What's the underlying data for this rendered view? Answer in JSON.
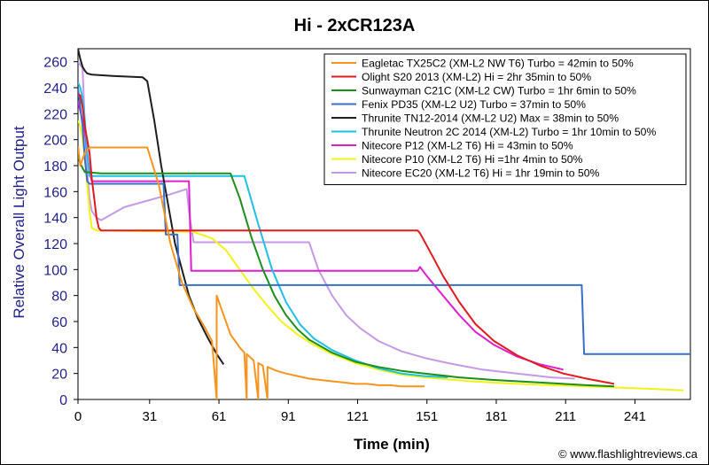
{
  "chart_data": {
    "type": "line",
    "title": "Hi - 2xCR123A",
    "xlabel": "Time (min)",
    "ylabel": "Relative Overall Light Output",
    "xlim": [
      0,
      265
    ],
    "ylim": [
      0,
      270
    ],
    "xticks": [
      0,
      31,
      61,
      91,
      121,
      151,
      181,
      211,
      241
    ],
    "yticks": [
      0,
      20,
      40,
      60,
      80,
      100,
      120,
      140,
      160,
      180,
      200,
      220,
      240,
      260
    ],
    "grid": false,
    "legend_position": "top-right",
    "copyright": "© www.flashlightreviews.ca",
    "series": [
      {
        "name": "Eagletac TX25C2 (XM-L2 NW T6) Turbo = 42min to 50%",
        "color": "#f7941d",
        "points": [
          [
            0,
            195
          ],
          [
            1,
            180
          ],
          [
            3,
            190
          ],
          [
            5,
            194
          ],
          [
            30,
            194
          ],
          [
            35,
            165
          ],
          [
            40,
            120
          ],
          [
            45,
            90
          ],
          [
            50,
            70
          ],
          [
            55,
            55
          ],
          [
            58,
            45
          ],
          [
            60,
            0
          ],
          [
            60,
            80
          ],
          [
            62,
            70
          ],
          [
            64,
            60
          ],
          [
            66,
            50
          ],
          [
            68,
            45
          ],
          [
            70,
            40
          ],
          [
            72,
            36
          ],
          [
            73,
            0
          ],
          [
            73,
            35
          ],
          [
            76,
            30
          ],
          [
            78,
            0
          ],
          [
            78,
            28
          ],
          [
            80,
            26
          ],
          [
            82,
            0
          ],
          [
            82,
            25
          ],
          [
            86,
            22
          ],
          [
            90,
            20
          ],
          [
            95,
            18
          ],
          [
            100,
            16
          ],
          [
            105,
            15
          ],
          [
            110,
            14
          ],
          [
            115,
            13
          ],
          [
            120,
            12
          ],
          [
            125,
            12
          ],
          [
            130,
            11
          ],
          [
            135,
            11
          ],
          [
            140,
            10
          ],
          [
            145,
            10
          ],
          [
            150,
            10
          ]
        ]
      },
      {
        "name": "Olight S20 2013 (XM-L2) Hi = 2hr 35min to 50%",
        "color": "#e31a1c",
        "points": [
          [
            0,
            235
          ],
          [
            1,
            234
          ],
          [
            2,
            225
          ],
          [
            3,
            210
          ],
          [
            4,
            200
          ],
          [
            5,
            190
          ],
          [
            6,
            170
          ],
          [
            7,
            155
          ],
          [
            8,
            140
          ],
          [
            9,
            132
          ],
          [
            10,
            130
          ],
          [
            147,
            130
          ],
          [
            148,
            128
          ],
          [
            152,
            115
          ],
          [
            158,
            95
          ],
          [
            165,
            75
          ],
          [
            172,
            58
          ],
          [
            180,
            45
          ],
          [
            190,
            34
          ],
          [
            200,
            26
          ],
          [
            210,
            20
          ],
          [
            220,
            16
          ],
          [
            232,
            12
          ]
        ]
      },
      {
        "name": "Sunwayman C21C (XM-L2 CW) Turbo = 1hr 6min to 50%",
        "color": "#1a8f1a",
        "points": [
          [
            0,
            187
          ],
          [
            1,
            182
          ],
          [
            2,
            178
          ],
          [
            3,
            175
          ],
          [
            10,
            174
          ],
          [
            66,
            174
          ],
          [
            70,
            155
          ],
          [
            75,
            125
          ],
          [
            80,
            100
          ],
          [
            85,
            80
          ],
          [
            90,
            65
          ],
          [
            95,
            54
          ],
          [
            100,
            46
          ],
          [
            110,
            36
          ],
          [
            120,
            29
          ],
          [
            130,
            25
          ],
          [
            140,
            22
          ],
          [
            150,
            20
          ],
          [
            165,
            17
          ],
          [
            180,
            15
          ],
          [
            200,
            13
          ],
          [
            220,
            11
          ],
          [
            232,
            10
          ]
        ]
      },
      {
        "name": "Fenix PD35 (XM-L2 U2) Turbo = 37min to 50%",
        "color": "#3a6fc9",
        "points": [
          [
            0,
            240
          ],
          [
            1,
            225
          ],
          [
            2,
            210
          ],
          [
            3,
            185
          ],
          [
            4,
            168
          ],
          [
            5,
            166
          ],
          [
            37,
            166
          ],
          [
            38,
            127
          ],
          [
            43,
            127
          ],
          [
            44,
            88
          ],
          [
            218,
            88
          ],
          [
            219,
            35
          ],
          [
            265,
            35
          ]
        ]
      },
      {
        "name": "Thrunite TN12-2014 (XM-L2 U2) Max = 38min to 50%",
        "color": "#1e1e1e",
        "points": [
          [
            0,
            270
          ],
          [
            1,
            262
          ],
          [
            2,
            256
          ],
          [
            3,
            253
          ],
          [
            4,
            251
          ],
          [
            6,
            250
          ],
          [
            15,
            249
          ],
          [
            28,
            248
          ],
          [
            30,
            245
          ],
          [
            33,
            215
          ],
          [
            36,
            180
          ],
          [
            39,
            150
          ],
          [
            42,
            120
          ],
          [
            45,
            100
          ],
          [
            48,
            80
          ],
          [
            52,
            62
          ],
          [
            56,
            48
          ],
          [
            60,
            35
          ],
          [
            63,
            27
          ]
        ]
      },
      {
        "name": "Thrunite Neutron 2C 2014 (XM-L2) Turbo = 1hr 10min to 50%",
        "color": "#1ec0e6",
        "points": [
          [
            0,
            244
          ],
          [
            1,
            240
          ],
          [
            2,
            232
          ],
          [
            3,
            215
          ],
          [
            4,
            190
          ],
          [
            5,
            172
          ],
          [
            72,
            172
          ],
          [
            78,
            135
          ],
          [
            84,
            100
          ],
          [
            90,
            75
          ],
          [
            96,
            58
          ],
          [
            102,
            47
          ],
          [
            110,
            38
          ],
          [
            120,
            30
          ],
          [
            130,
            24
          ],
          [
            140,
            20
          ],
          [
            150,
            18
          ],
          [
            160,
            17
          ]
        ]
      },
      {
        "name": "Nitecore P12 (XM-L2 T6) Hi = 43min to 50%",
        "color": "#e01ed0",
        "points": [
          [
            0,
            230
          ],
          [
            1,
            222
          ],
          [
            2,
            215
          ],
          [
            3,
            205
          ],
          [
            4,
            190
          ],
          [
            5,
            175
          ],
          [
            6,
            168
          ],
          [
            48,
            168
          ],
          [
            49,
            99
          ],
          [
            147,
            99
          ],
          [
            148,
            102
          ],
          [
            151,
            95
          ],
          [
            157,
            82
          ],
          [
            165,
            65
          ],
          [
            172,
            52
          ],
          [
            180,
            42
          ],
          [
            190,
            33
          ],
          [
            200,
            27
          ],
          [
            210,
            23
          ]
        ]
      },
      {
        "name": "Nitecore P10 (XM-L2 T6) Hi =1hr 4min to 50%",
        "color": "#f2f21a",
        "points": [
          [
            0,
            215
          ],
          [
            1,
            210
          ],
          [
            2,
            200
          ],
          [
            3,
            185
          ],
          [
            4,
            165
          ],
          [
            5,
            145
          ],
          [
            6,
            132
          ],
          [
            8,
            130
          ],
          [
            50,
            129
          ],
          [
            58,
            124
          ],
          [
            64,
            115
          ],
          [
            70,
            100
          ],
          [
            76,
            85
          ],
          [
            82,
            72
          ],
          [
            88,
            60
          ],
          [
            95,
            50
          ],
          [
            102,
            42
          ],
          [
            110,
            35
          ],
          [
            120,
            28
          ],
          [
            130,
            23
          ],
          [
            140,
            19
          ],
          [
            150,
            17
          ],
          [
            170,
            14
          ],
          [
            190,
            12
          ],
          [
            220,
            10
          ],
          [
            250,
            8
          ],
          [
            262,
            7
          ]
        ]
      },
      {
        "name": "Nitecore EC20 (XM-L2 T6) Hi = 1hr 19min to 50%",
        "color": "#c799e8",
        "points": [
          [
            0,
            260
          ],
          [
            2,
            255
          ],
          [
            3,
            210
          ],
          [
            4,
            175
          ],
          [
            5,
            155
          ],
          [
            6,
            145
          ],
          [
            8,
            140
          ],
          [
            10,
            138
          ],
          [
            14,
            142
          ],
          [
            20,
            148
          ],
          [
            30,
            153
          ],
          [
            40,
            158
          ],
          [
            47,
            162
          ],
          [
            48,
            145
          ],
          [
            50,
            121
          ],
          [
            100,
            121
          ],
          [
            104,
            100
          ],
          [
            110,
            80
          ],
          [
            116,
            65
          ],
          [
            122,
            55
          ],
          [
            130,
            45
          ],
          [
            140,
            37
          ],
          [
            150,
            32
          ],
          [
            160,
            28
          ],
          [
            175,
            23
          ],
          [
            190,
            20
          ],
          [
            205,
            17
          ],
          [
            215,
            16
          ]
        ]
      }
    ]
  }
}
